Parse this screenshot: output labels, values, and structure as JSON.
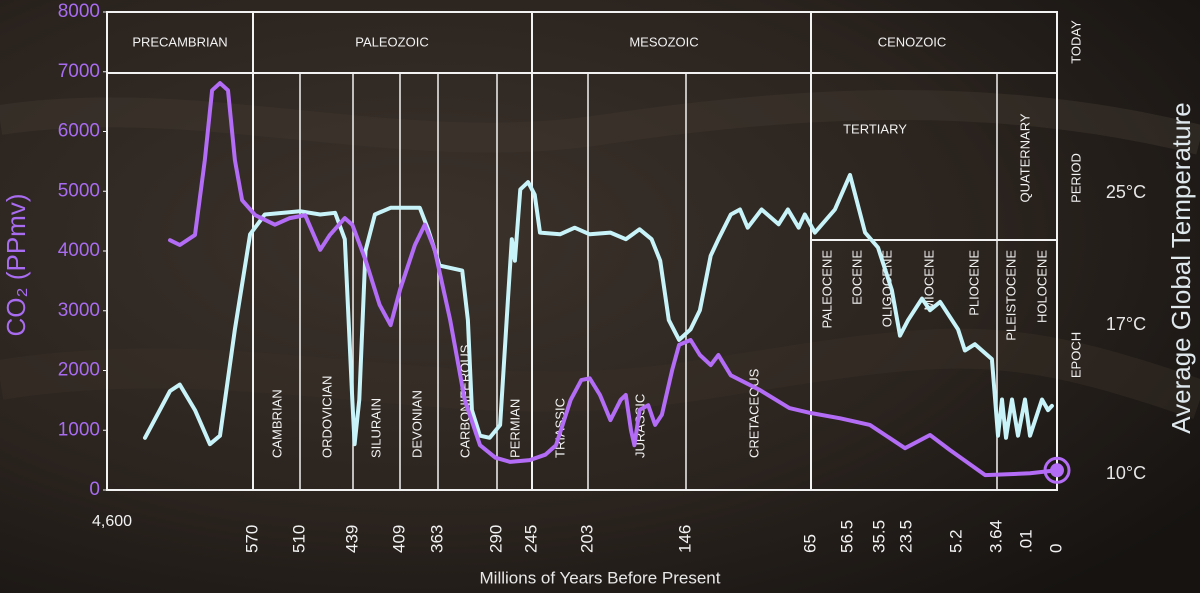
{
  "chart_data": {
    "type": "line",
    "x_label": "Millions of Years Before Present",
    "y_label": "CO₂ (PPmv)",
    "y2_label": "Average Global Temperature",
    "xlim": [
      4600,
      0
    ],
    "xticks": [
      {
        "value": 4600,
        "label": "4,600"
      },
      570,
      510,
      439,
      409,
      363,
      290,
      245,
      203,
      146,
      65,
      56.5,
      35.5,
      23.5,
      5.2,
      3.64,
      {
        "value": 0.01,
        "label": ".01"
      },
      0
    ],
    "ylim": [
      0,
      8000
    ],
    "yticks": [
      0,
      1000,
      2000,
      3000,
      4000,
      5000,
      6000,
      7000,
      8000
    ],
    "y2lim": [
      9,
      35
    ],
    "y2ticks": [
      {
        "value": 10,
        "label": "10°C"
      },
      {
        "value": 17,
        "label": "17°C"
      },
      {
        "value": 25,
        "label": "25°C"
      }
    ],
    "eras": [
      "PRECAMBRIAN",
      "PALEOZOIC",
      "MESOZOIC",
      "CENOZOIC"
    ],
    "today_label": "TODAY",
    "period_label": "PERIOD",
    "epoch_label": "EPOCH",
    "periods": [
      "CAMBRIAN",
      "ORDOVICIAN",
      "SILURAIN",
      "DEVONIAN",
      "CARBONIFEROUS",
      "PERMIAN",
      "TRIASSIC",
      "JURASSIC",
      "CRETACEOUS",
      "TERTIARY",
      "QUATERNARY"
    ],
    "epochs": [
      "PALEOCENE",
      "EOCENE",
      "OLIGOCENE",
      "MIOCENE",
      "PLIOCENE",
      "PLEISTOCENE",
      "HOLOCENE"
    ],
    "series": [
      {
        "color": "#b36cf5",
        "x": [
          2860,
          2590,
          2170,
          1900,
          1700,
          1480,
          1260,
          1070,
          870,
          567,
          542,
          523,
          503,
          483,
          470,
          450,
          440,
          431,
          422,
          415,
          409,
          391,
          379,
          367,
          348,
          330,
          311,
          292,
          273,
          248,
          235,
          227,
          216,
          208,
          202,
          196,
          190,
          184,
          181,
          178,
          176,
          173,
          168,
          164,
          160,
          154,
          150,
          143,
          137,
          130,
          125,
          117,
          98,
          79,
          65.6,
          58.3,
          42.1,
          24.4,
          15.1,
          7.8,
          4.1,
          0.009,
          0
        ],
        "values": [
          4180,
          4100,
          4270,
          5520,
          6690,
          6810,
          6690,
          5520,
          4850,
          4600,
          4440,
          4550,
          4600,
          4020,
          4270,
          4550,
          4440,
          3850,
          3100,
          2760,
          3350,
          4100,
          4440,
          4020,
          2850,
          1510,
          750,
          540,
          470,
          500,
          590,
          750,
          1510,
          1840,
          1870,
          1590,
          1170,
          1510,
          1590,
          1000,
          750,
          1340,
          1420,
          1090,
          1260,
          2010,
          2430,
          2510,
          2260,
          2090,
          2260,
          1920,
          1670,
          1370,
          1290,
          1200,
          1090,
          700,
          920,
          670,
          250,
          280,
          330
        ]
      },
      {
        "color": "#c8f3f8",
        "axis": "y2",
        "x": [
          3550,
          2860,
          2590,
          2170,
          1760,
          1480,
          1070,
          650,
          555,
          510,
          483,
          463,
          450,
          440,
          438,
          435,
          431,
          425,
          415,
          385,
          375,
          361,
          333,
          326,
          321,
          311,
          299,
          286,
          276,
          271,
          267,
          260,
          250,
          243,
          239,
          224,
          213,
          202,
          190,
          181,
          173,
          166,
          161,
          156,
          150,
          143,
          137,
          130,
          125,
          117,
          111,
          106,
          97,
          86,
          80,
          73,
          69,
          64.1,
          59.5,
          55.2,
          45.3,
          36.8,
          30.2,
          26.6,
          23.1,
          18.0,
          15.1,
          11.4,
          5.16,
          4.89,
          4.5,
          3.84,
          3.52,
          3.04,
          2.55,
          1.83,
          1.1,
          0.25,
          0.009,
          0.005,
          0.003,
          0.0017
        ],
        "values": [
          11.7,
          13.9,
          14.2,
          13.0,
          11.4,
          11.8,
          16.8,
          22.5,
          23.7,
          23.9,
          23.7,
          23.8,
          22.2,
          13.5,
          11.4,
          13.5,
          21.5,
          23.7,
          24.1,
          24.1,
          22.8,
          20.6,
          20.3,
          17.3,
          13.0,
          11.8,
          11.7,
          12.3,
          18.5,
          22.2,
          20.9,
          25.2,
          25.6,
          24.9,
          22.6,
          22.5,
          22.9,
          22.5,
          22.6,
          22.2,
          22.8,
          22.2,
          20.9,
          17.3,
          16.3,
          16.8,
          17.9,
          21.2,
          22.2,
          23.7,
          24.0,
          22.9,
          24.0,
          23.1,
          24.0,
          22.9,
          23.7,
          22.6,
          24.0,
          26.0,
          22.6,
          21.7,
          19.1,
          16.5,
          17.3,
          18.6,
          17.9,
          18.4,
          16.8,
          15.8,
          16.1,
          15.4,
          11.8,
          13.5,
          11.7,
          13.5,
          11.8,
          13.5,
          11.8,
          13.5,
          13.0,
          13.2
        ]
      }
    ]
  }
}
